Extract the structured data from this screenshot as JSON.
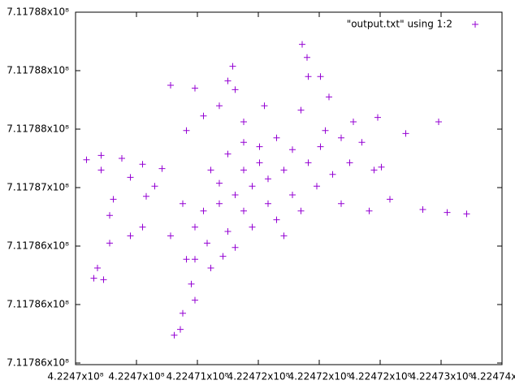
{
  "chart_data": {
    "type": "scatter",
    "xlim": [
      422469800,
      422473300
    ],
    "xticks": [
      {
        "value": 422469800,
        "label": "4.2247x10⁸"
      },
      {
        "value": 422470300,
        "label": "4.2247x10⁸"
      },
      {
        "value": 422470800,
        "label": "4.22471x10⁸"
      },
      {
        "value": 422471300,
        "label": "4.22472x10⁸"
      },
      {
        "value": 422471800,
        "label": "4.22472x10⁸"
      },
      {
        "value": 422472300,
        "label": "4.22472x10⁸"
      },
      {
        "value": 422472800,
        "label": "4.22473x10⁸"
      },
      {
        "value": 422473300,
        "label": "4.22474x10⁸"
      }
    ],
    "ylim": [
      711785600,
      711788000
    ],
    "yticks": [
      {
        "value": 711785600,
        "label": "7.11786x10⁸"
      },
      {
        "value": 711786000,
        "label": "7.11786x10⁸"
      },
      {
        "value": 711786400,
        "label": "7.11786x10⁸"
      },
      {
        "value": 711786800,
        "label": "7.11787x10⁸"
      },
      {
        "value": 711787200,
        "label": "7.11788x10⁸"
      },
      {
        "value": 711787600,
        "label": "7.11788x10⁸"
      },
      {
        "value": 711788000,
        "label": "7.11788x10⁸"
      }
    ],
    "legend": "top right",
    "series": [
      {
        "name": "\"output.txt\" using 1:2",
        "color": "#9400d3",
        "x": [
          422469890,
          422470010,
          422470180,
          422470350,
          422470510,
          422470010,
          422470250,
          422470450,
          422470110,
          422470380,
          422470080,
          422470350,
          422470080,
          422469980,
          422469950,
          422470030,
          422470250,
          422470580,
          422470710,
          422470750,
          422470680,
          422470610,
          422470660,
          422470780,
          422470910,
          422470580,
          422470780,
          422470980,
          422470850,
          422470710,
          422471050,
          422471090,
          422471110,
          422471180,
          422471350,
          422471660,
          422471700,
          422471810,
          422471710,
          422471880,
          422471850,
          422471650,
          422472080,
          422472280,
          422472510,
          422472780,
          422472310,
          422472380,
          422472650,
          422473010,
          422472850,
          422472210,
          422471980,
          422470910,
          422471050,
          422471180,
          422471310,
          422471450,
          422471580,
          422471710,
          422471510,
          422471380,
          422471250,
          422471110,
          422470980,
          422470850,
          422471180,
          422471380,
          422471580,
          422471780,
          422471910,
          422472050,
          422471450,
          422471250,
          422471050,
          422470880,
          422471110,
          422471310,
          422471180,
          422470980,
          422471510,
          422470780,
          422470680,
          422471650,
          422471810,
          422471980,
          422472150,
          422472250,
          422470780,
          422471010
        ],
        "values": [
          711786990,
          711787020,
          711787000,
          711786960,
          711786930,
          711786920,
          711786870,
          711786810,
          711786720,
          711786740,
          711786610,
          711786530,
          711786420,
          711786250,
          711786180,
          711786170,
          711786470,
          711786470,
          711786310,
          711786140,
          711785940,
          711785790,
          711785830,
          711786030,
          711786250,
          711787500,
          711787480,
          711787360,
          711787290,
          711787190,
          711787530,
          711787630,
          711787470,
          711787250,
          711787360,
          711787780,
          711787690,
          711787560,
          711787560,
          711787420,
          711787190,
          711787330,
          711787250,
          711787280,
          711787170,
          711787250,
          711786940,
          711786720,
          711786650,
          711786620,
          711786630,
          711786640,
          711786690,
          711786920,
          711787030,
          711787110,
          711787080,
          711787140,
          711787060,
          711786970,
          711786920,
          711786860,
          711786810,
          711786750,
          711786690,
          711786640,
          711786640,
          711786690,
          711786750,
          711786810,
          711786890,
          711786970,
          711786580,
          711786530,
          711786500,
          711786420,
          711786390,
          711786970,
          711786920,
          711786830,
          711786470,
          711786530,
          711786690,
          711786640,
          711787080,
          711787140,
          711787110,
          711786920,
          711786310,
          711786330
        ]
      }
    ]
  }
}
